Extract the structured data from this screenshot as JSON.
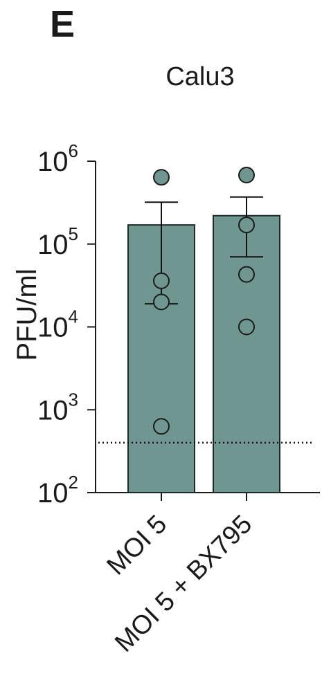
{
  "panel_label": "E",
  "chart_data": {
    "type": "bar",
    "title": "Calu3",
    "ylabel": "PFU/ml",
    "xlabel": "",
    "y_scale": "log10",
    "ylim": [
      100,
      1000000
    ],
    "y_ticks": [
      {
        "value": 100,
        "base": "10",
        "exp": "2"
      },
      {
        "value": 1000,
        "base": "10",
        "exp": "3"
      },
      {
        "value": 10000,
        "base": "10",
        "exp": "4"
      },
      {
        "value": 100000,
        "base": "10",
        "exp": "5"
      },
      {
        "value": 1000000,
        "base": "10",
        "exp": "6"
      }
    ],
    "categories": [
      "MOI 5",
      "MOI 5 + BX795"
    ],
    "values": [
      170000,
      220000
    ],
    "error": [
      {
        "low": 19000,
        "high": 320000
      },
      {
        "low": 70000,
        "high": 370000
      }
    ],
    "points": [
      [
        640000,
        36000,
        20000,
        630
      ],
      [
        680000,
        170000,
        43000,
        10000
      ]
    ],
    "detection_limit": 400,
    "colors": {
      "bar_fill": "#6f9690",
      "bar_edge": "#1e2a28",
      "point_fill": "#6f9690",
      "axis": "#1a1a1a"
    },
    "grid": false,
    "legend": "none"
  }
}
